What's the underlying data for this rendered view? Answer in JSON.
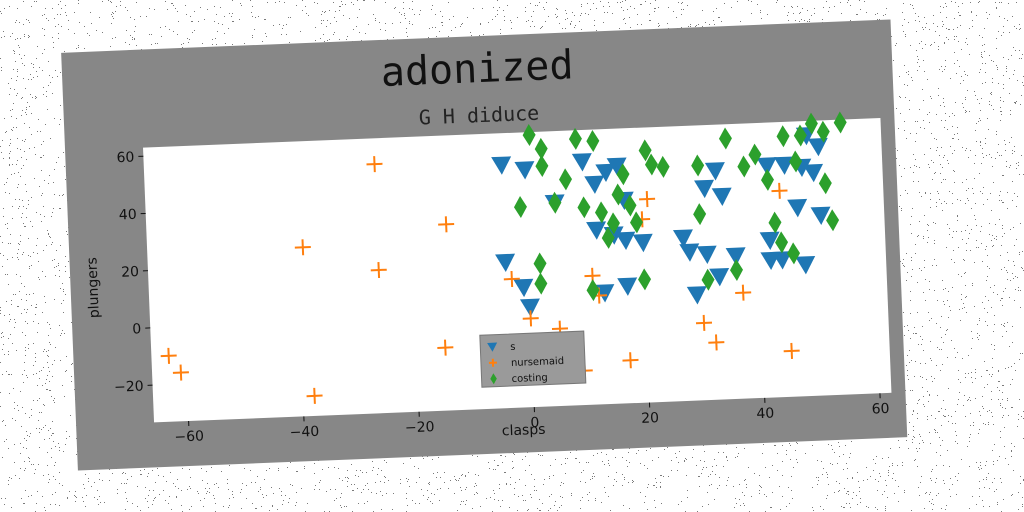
{
  "chart_data": {
    "type": "scatter",
    "title": "adonized",
    "subtitle": "G H diduce",
    "xlabel": "clasps",
    "ylabel": "plungers",
    "xlim": [
      -66,
      62
    ],
    "ylim": [
      -33,
      63
    ],
    "xticks": [
      -60,
      -40,
      -20,
      0,
      20,
      40,
      60
    ],
    "yticks": [
      -20,
      0,
      20,
      40,
      60
    ],
    "grid": false,
    "legend_position": "bottom-center",
    "colors": {
      "s": "#1f77b4",
      "nursemaid": "#ff7f0e",
      "costing": "#2ca02c"
    },
    "series": [
      {
        "name": "s",
        "marker": "triangle-down",
        "points": [
          [
            -4,
            52
          ],
          [
            0,
            50
          ],
          [
            5,
            38
          ],
          [
            10,
            52
          ],
          [
            12,
            44
          ],
          [
            14,
            48
          ],
          [
            16,
            50
          ],
          [
            17,
            38
          ],
          [
            12,
            28
          ],
          [
            15,
            26
          ],
          [
            17,
            24
          ],
          [
            20,
            23
          ],
          [
            27,
            24
          ],
          [
            28,
            19
          ],
          [
            31,
            18
          ],
          [
            36,
            17
          ],
          [
            34,
            38
          ],
          [
            31,
            41
          ],
          [
            33,
            47
          ],
          [
            42,
            48
          ],
          [
            45,
            48
          ],
          [
            48,
            47
          ],
          [
            50,
            45
          ],
          [
            47,
            33
          ],
          [
            51,
            30
          ],
          [
            42,
            22
          ],
          [
            44,
            15
          ],
          [
            48,
            13
          ],
          [
            -4,
            18
          ],
          [
            -1,
            9
          ],
          [
            0,
            2
          ],
          [
            13,
            6
          ],
          [
            17,
            8
          ],
          [
            29,
            4
          ],
          [
            33,
            10
          ],
          [
            42,
            15
          ],
          [
            51,
            54
          ],
          [
            49,
            58
          ]
        ]
      },
      {
        "name": "nursemaid",
        "marker": "plus",
        "points": [
          [
            -63,
            -10
          ],
          [
            -61,
            -16
          ],
          [
            -39,
            26
          ],
          [
            -38,
            -26
          ],
          [
            -26,
            54
          ],
          [
            -26,
            17
          ],
          [
            -14,
            32
          ],
          [
            -15,
            -11
          ],
          [
            -3,
            12
          ],
          [
            0,
            -2
          ],
          [
            5,
            -6
          ],
          [
            6,
            -20
          ],
          [
            9,
            -21
          ],
          [
            11,
            12
          ],
          [
            12,
            5
          ],
          [
            17,
            -18
          ],
          [
            20,
            31
          ],
          [
            21,
            38
          ],
          [
            30,
            -6
          ],
          [
            32,
            -13
          ],
          [
            37,
            4
          ],
          [
            44,
            39
          ],
          [
            45,
            -17
          ]
        ]
      },
      {
        "name": "costing",
        "marker": "diamond",
        "points": [
          [
            -1,
            37
          ],
          [
            1,
            62
          ],
          [
            3,
            57
          ],
          [
            3,
            51
          ],
          [
            5,
            38
          ],
          [
            7,
            46
          ],
          [
            9,
            60
          ],
          [
            10,
            36
          ],
          [
            12,
            59
          ],
          [
            13,
            34
          ],
          [
            14,
            25
          ],
          [
            15,
            30
          ],
          [
            16,
            40
          ],
          [
            17,
            47
          ],
          [
            18,
            36
          ],
          [
            19,
            30
          ],
          [
            20,
            10
          ],
          [
            21,
            55
          ],
          [
            22,
            50
          ],
          [
            24,
            49
          ],
          [
            30,
            49
          ],
          [
            30,
            32
          ],
          [
            31,
            9
          ],
          [
            35,
            58
          ],
          [
            36,
            12
          ],
          [
            38,
            48
          ],
          [
            40,
            52
          ],
          [
            42,
            43
          ],
          [
            43,
            28
          ],
          [
            44,
            21
          ],
          [
            45,
            58
          ],
          [
            46,
            17
          ],
          [
            47,
            49
          ],
          [
            48,
            58
          ],
          [
            50,
            62
          ],
          [
            52,
            59
          ],
          [
            52,
            41
          ],
          [
            53,
            28
          ],
          [
            55,
            62
          ],
          [
            2,
            17
          ],
          [
            2,
            10
          ],
          [
            11,
            7
          ]
        ]
      }
    ]
  }
}
